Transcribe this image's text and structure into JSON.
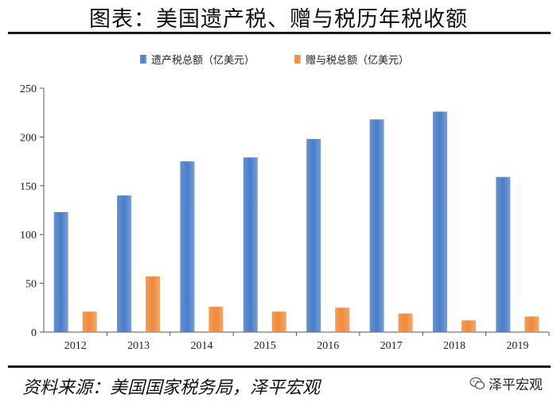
{
  "title": "图表：美国遗产税、赠与税历年税收额",
  "source": "资料来源：美国国家税务局，泽平宏观",
  "brand": "泽平宏观",
  "colors": {
    "estate": "#4a7ec8",
    "gift": "#f08a3a"
  },
  "chart_data": {
    "type": "bar",
    "categories": [
      "2012",
      "2013",
      "2014",
      "2015",
      "2016",
      "2017",
      "2018",
      "2019"
    ],
    "series": [
      {
        "name": "遗产税总额（亿美元）",
        "values": [
          123,
          140,
          175,
          179,
          198,
          218,
          226,
          159
        ]
      },
      {
        "name": "赠与税总额（亿美元）",
        "values": [
          21,
          57,
          26,
          21,
          25,
          19,
          12,
          16
        ]
      }
    ],
    "yticks": [
      0,
      50,
      100,
      150,
      200,
      250
    ],
    "ylim": [
      0,
      250
    ],
    "legend_position": "top-center",
    "grid": false
  }
}
